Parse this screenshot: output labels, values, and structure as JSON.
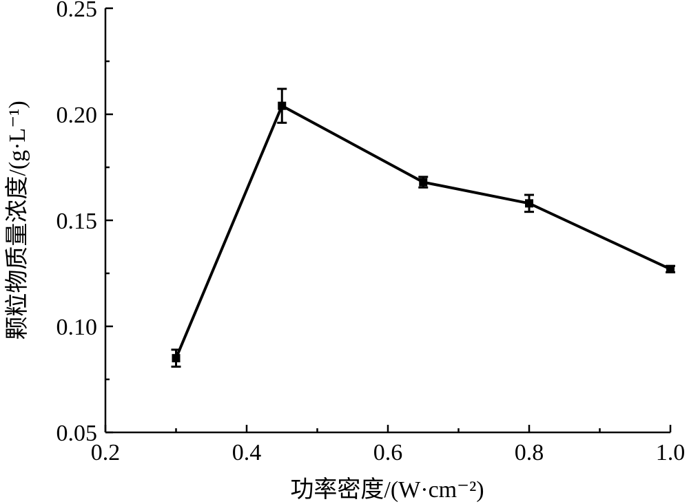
{
  "chart_data": {
    "type": "line",
    "xlabel": "功率密度/(W·cm⁻²)",
    "ylabel": "颗粒物质量浓度/(g·L⁻¹)",
    "xlim": [
      0.2,
      1.0
    ],
    "ylim": [
      0.05,
      0.25
    ],
    "x_ticks": [
      "0.2",
      "0.4",
      "0.6",
      "0.8",
      "1.0"
    ],
    "y_ticks": [
      "0.05",
      "0.10",
      "0.15",
      "0.20",
      "0.25"
    ],
    "grid": false,
    "legend": "none",
    "marker": "square",
    "color": "#000000",
    "series": [
      {
        "x": [
          0.3,
          0.45,
          0.65,
          0.8,
          1.0
        ],
        "y": [
          0.085,
          0.204,
          0.168,
          0.158,
          0.127
        ],
        "error": [
          0.004,
          0.008,
          0.0025,
          0.004,
          0.0015
        ]
      }
    ]
  }
}
